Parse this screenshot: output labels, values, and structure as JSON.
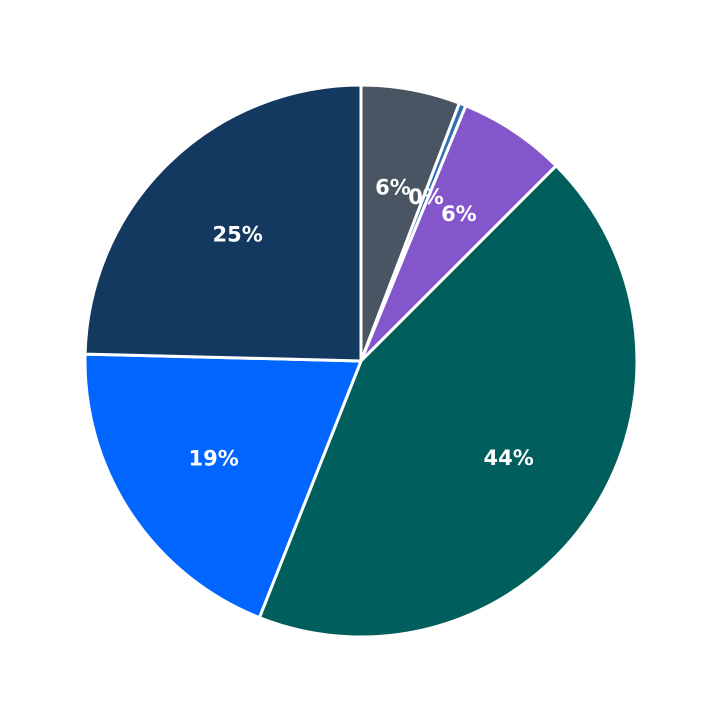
{
  "chart_data": {
    "type": "pie",
    "start_angle_deg": 90,
    "direction": "clockwise",
    "legend": "none",
    "slices": [
      {
        "label": "6%",
        "value": 5.8,
        "color": "#4a5563"
      },
      {
        "label": "0%",
        "value": 0.4,
        "color": "#2f6fb3"
      },
      {
        "label": "6%",
        "value": 6.3,
        "color": "#8356cc"
      },
      {
        "label": "44%",
        "value": 43.5,
        "color": "#005f5c"
      },
      {
        "label": "19%",
        "value": 19.4,
        "color": "#0066ff"
      },
      {
        "label": "25%",
        "value": 24.6,
        "color": "#133961"
      }
    ]
  }
}
